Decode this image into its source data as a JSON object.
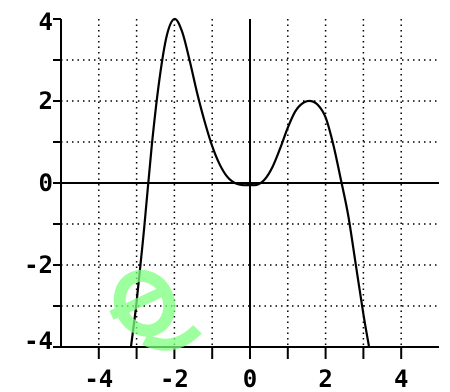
{
  "chart_data": {
    "type": "line",
    "title": "",
    "xlabel": "",
    "ylabel": "",
    "xlim": [
      -5,
      5
    ],
    "ylim": [
      -4,
      4
    ],
    "x_ticks": [
      -4,
      -2,
      0,
      2,
      4
    ],
    "x_tick_labels": [
      "-4",
      "-2",
      "0",
      "2",
      "4"
    ],
    "y_ticks": [
      -4,
      -2,
      0,
      2,
      4
    ],
    "y_tick_labels": [
      "-4",
      "-2",
      "0",
      "2",
      "4"
    ],
    "grid": true,
    "grid_style": "dotted",
    "axis_lines_through_origin": true,
    "series": [
      {
        "color": "#000000",
        "x": [
          -3.15,
          -3.0,
          -2.8,
          -2.6,
          -2.4,
          -2.2,
          -2.0,
          -1.8,
          -1.6,
          -1.4,
          -1.2,
          -1.0,
          -0.8,
          -0.6,
          -0.4,
          -0.2,
          0.0,
          0.2,
          0.4,
          0.6,
          0.8,
          1.0,
          1.2,
          1.4,
          1.6,
          1.8,
          2.0,
          2.2,
          2.4,
          2.6,
          2.8,
          3.0,
          3.15
        ],
        "y": [
          -4.0,
          -2.9,
          -1.1,
          0.9,
          2.5,
          3.6,
          4.0,
          3.7,
          3.0,
          2.2,
          1.5,
          0.9,
          0.45,
          0.15,
          0.0,
          -0.05,
          -0.05,
          -0.04,
          0.1,
          0.4,
          0.85,
          1.35,
          1.75,
          1.95,
          2.0,
          1.9,
          1.6,
          0.95,
          0.1,
          -0.8,
          -2.0,
          -3.2,
          -4.0
        ]
      }
    ]
  },
  "watermark": {
    "color": "#7dff7d"
  }
}
